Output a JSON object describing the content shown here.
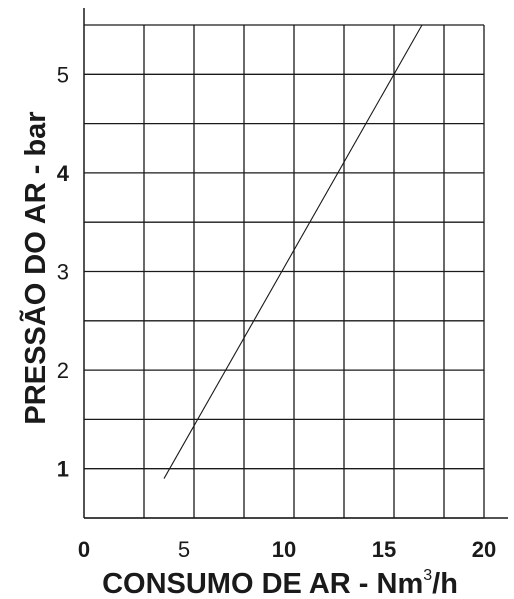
{
  "chart_data": {
    "type": "line",
    "title": "",
    "xlabel": "CONSUMO DE AR - Nm³/h",
    "xlabel_main": "CONSUMO DE AR - Nm",
    "xlabel_sup": "3",
    "xlabel_tail": "/h",
    "ylabel": "PRESSÃO DO AR - bar",
    "xlim": [
      0,
      20
    ],
    "ylim": [
      0.5,
      5.5
    ],
    "grid": true,
    "x_ticks": [
      {
        "value": 0,
        "label": "0",
        "bold": true
      },
      {
        "value": 5,
        "label": "5",
        "bold": false
      },
      {
        "value": 10,
        "label": "10",
        "bold": true
      },
      {
        "value": 15,
        "label": "15",
        "bold": true
      },
      {
        "value": 20,
        "label": "20",
        "bold": true
      }
    ],
    "y_ticks": [
      {
        "value": 1,
        "label": "1",
        "bold": true
      },
      {
        "value": 2,
        "label": "2",
        "bold": false
      },
      {
        "value": 3,
        "label": "3",
        "bold": false
      },
      {
        "value": 4,
        "label": "4",
        "bold": true
      },
      {
        "value": 5,
        "label": "5",
        "bold": false
      }
    ],
    "x_gridlines": [
      3,
      5.5,
      8,
      10.5,
      13,
      15.5,
      18,
      20
    ],
    "y_gridlines": [
      0.5,
      1,
      1.5,
      2,
      2.5,
      3,
      3.5,
      4,
      4.5,
      5,
      5.5
    ],
    "series": [
      {
        "color": "#1a1a1a",
        "points": [
          [
            4.0,
            0.9
          ],
          [
            16.9,
            5.5
          ]
        ]
      }
    ]
  }
}
